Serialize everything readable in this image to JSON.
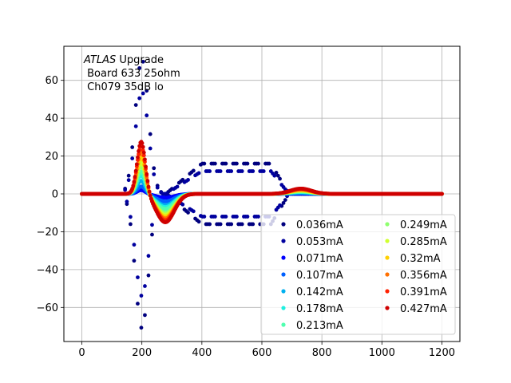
{
  "chart_data": {
    "type": "scatter",
    "annotation": {
      "line1_italic": "ATLAS",
      "line1_rest": " Upgrade",
      "line2": " Board 633 25ohm",
      "line3": " Ch079 35dB lo"
    },
    "xlim": [
      -60,
      1260
    ],
    "ylim": [
      -78,
      78
    ],
    "xticks": [
      0,
      200,
      400,
      600,
      800,
      1000,
      1200
    ],
    "yticks": [
      -60,
      -40,
      -20,
      0,
      20,
      40,
      60
    ],
    "grid": true,
    "legend": {
      "placement": "lower-right",
      "columns": 2
    },
    "series": [
      {
        "name": "0.036mA",
        "color": "#00007f",
        "peak": 71,
        "trough": -72,
        "bipolar": true
      },
      {
        "name": "0.053mA",
        "color": "#00009f",
        "peak": 54,
        "trough": -54,
        "bipolar": true
      },
      {
        "name": "0.071mA",
        "color": "#0000ff",
        "peak": 2,
        "trough": -2,
        "bipolar": false
      },
      {
        "name": "0.107mA",
        "color": "#0060ff",
        "peak": 4,
        "trough": -4,
        "bipolar": false
      },
      {
        "name": "0.142mA",
        "color": "#00b0ef",
        "peak": 7,
        "trough": -6,
        "bipolar": false
      },
      {
        "name": "0.178mA",
        "color": "#1ff0e0",
        "peak": 10,
        "trough": -7,
        "bipolar": false
      },
      {
        "name": "0.213mA",
        "color": "#4fffaf",
        "peak": 12,
        "trough": -8,
        "bipolar": false
      },
      {
        "name": "0.249mA",
        "color": "#8fff6f",
        "peak": 15,
        "trough": -10,
        "bipolar": false
      },
      {
        "name": "0.285mA",
        "color": "#d0ff2f",
        "peak": 17,
        "trough": -11,
        "bipolar": false
      },
      {
        "name": "0.32mA",
        "color": "#ffd000",
        "peak": 20,
        "trough": -12,
        "bipolar": false
      },
      {
        "name": "0.356mA",
        "color": "#ff7000",
        "peak": 23,
        "trough": -13,
        "bipolar": false
      },
      {
        "name": "0.391mA",
        "color": "#ff2000",
        "peak": 26,
        "trough": -14,
        "bipolar": false
      },
      {
        "name": "0.427mA",
        "color": "#cf0000",
        "peak": 28,
        "trough": -15,
        "bipolar": false
      }
    ]
  }
}
